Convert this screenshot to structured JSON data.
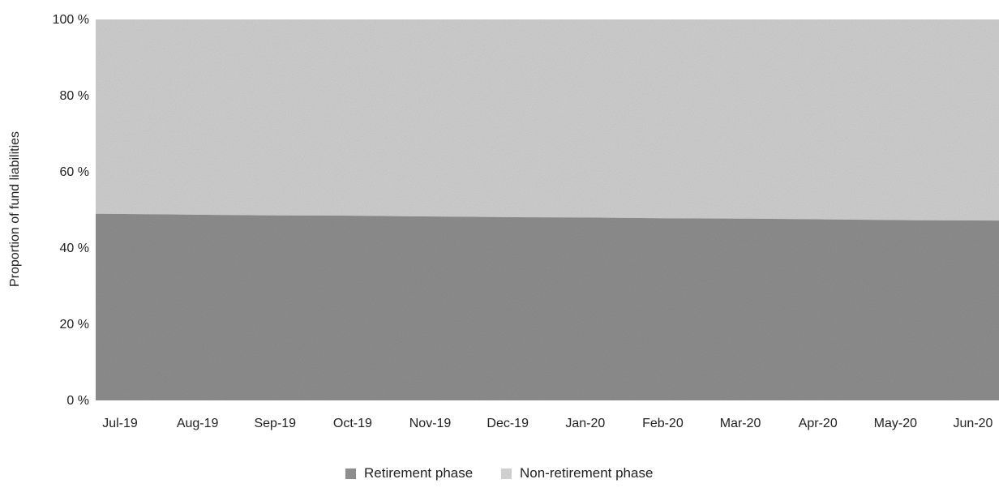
{
  "chart_data": {
    "type": "area",
    "stacked": true,
    "percent": true,
    "categories": [
      "Jul-19",
      "Aug-19",
      "Sep-19",
      "Oct-19",
      "Nov-19",
      "Dec-19",
      "Jan-20",
      "Feb-20",
      "Mar-20",
      "Apr-20",
      "May-20",
      "Jun-20"
    ],
    "series": [
      {
        "name": "Retirement phase",
        "values": [
          49,
          48.8,
          48.6,
          48.5,
          48.3,
          48.1,
          48.0,
          47.8,
          47.7,
          47.5,
          47.3,
          47.2
        ],
        "color": "#8e8e8e"
      },
      {
        "name": "Non-retirement phase",
        "values": [
          51,
          51.2,
          51.4,
          51.5,
          51.7,
          51.9,
          52.0,
          52.2,
          52.3,
          52.5,
          52.7,
          52.8
        ],
        "color": "#cfcfcf"
      }
    ],
    "ylabel": "Proportion of fund liabilities",
    "xlabel": "",
    "ylim": [
      0,
      100
    ],
    "yticks": [
      "0 %",
      "20 %",
      "40 %",
      "60 %",
      "80 %",
      "100 %"
    ],
    "grid": false,
    "legend_position": "bottom"
  }
}
